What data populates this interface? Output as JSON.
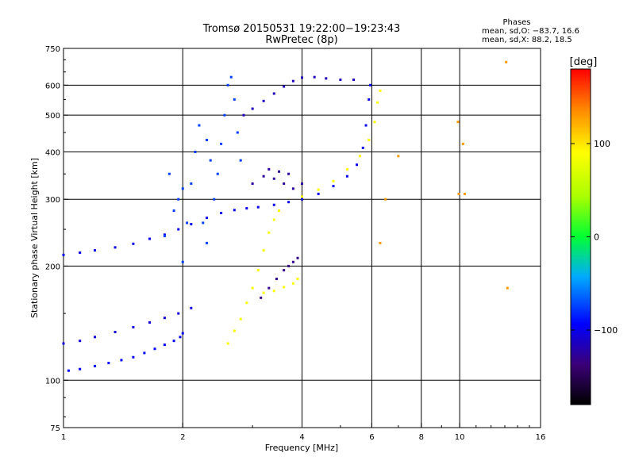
{
  "chart_data": {
    "type": "scatter",
    "title": "Tromsø 20150531 19:22:00−19:23:43",
    "subtitle": "RwPretec (8p)",
    "xlabel": "Frequency [MHz]",
    "ylabel": "Stationary phase Virtual Height [km]",
    "x_scale": "log",
    "y_scale": "log",
    "xlim": [
      1,
      16
    ],
    "ylim": [
      75,
      750
    ],
    "x_ticks": [
      1,
      2,
      4,
      6,
      8,
      10,
      16
    ],
    "y_ticks": [
      75,
      100,
      200,
      300,
      400,
      500,
      600,
      750
    ],
    "x_gridlines": [
      2,
      4,
      6,
      8,
      10
    ],
    "y_gridlines": [
      100,
      200,
      300,
      400,
      500,
      600
    ],
    "grid": true,
    "stats": {
      "header": "Phases",
      "line_o": "mean, sd,O: −83.7, 16.6",
      "line_x": "mean, sd,X:  88.2, 18.5"
    },
    "colorbar": {
      "label": "[deg]",
      "range": [
        -180,
        180
      ],
      "ticks": [
        100,
        0,
        -100
      ],
      "tick_labels": [
        "100",
        "0",
        "−100"
      ]
    },
    "series": [
      {
        "trace": "lower-E",
        "phase": -95,
        "points": [
          [
            1.03,
            106
          ],
          [
            1.1,
            107
          ],
          [
            1.2,
            109
          ],
          [
            1.3,
            111
          ],
          [
            1.4,
            113
          ],
          [
            1.5,
            115
          ],
          [
            1.6,
            118
          ],
          [
            1.7,
            121
          ],
          [
            1.8,
            124
          ],
          [
            1.9,
            127
          ],
          [
            1.97,
            130
          ],
          [
            2.0,
            133
          ]
        ]
      },
      {
        "trace": "lower-E-upper",
        "phase": -105,
        "points": [
          [
            1.0,
            125
          ],
          [
            1.1,
            127
          ],
          [
            1.2,
            130
          ],
          [
            1.35,
            134
          ],
          [
            1.5,
            138
          ],
          [
            1.65,
            142
          ],
          [
            1.8,
            146
          ],
          [
            1.95,
            150
          ],
          [
            2.1,
            155
          ]
        ]
      },
      {
        "trace": "F-lower",
        "phase": -100,
        "points": [
          [
            1.0,
            214
          ],
          [
            1.1,
            217
          ],
          [
            1.2,
            220
          ],
          [
            1.35,
            224
          ],
          [
            1.5,
            229
          ],
          [
            1.65,
            236
          ],
          [
            1.8,
            242
          ],
          [
            1.95,
            250
          ],
          [
            2.1,
            258
          ],
          [
            2.3,
            268
          ],
          [
            2.5,
            276
          ],
          [
            2.7,
            281
          ],
          [
            2.9,
            284
          ],
          [
            3.1,
            286
          ],
          [
            3.4,
            290
          ],
          [
            3.7,
            295
          ],
          [
            4.0,
            300
          ],
          [
            4.4,
            310
          ],
          [
            4.8,
            325
          ],
          [
            5.2,
            345
          ],
          [
            5.5,
            370
          ],
          [
            5.7,
            410
          ],
          [
            5.8,
            470
          ],
          [
            5.9,
            550
          ],
          [
            5.95,
            600
          ]
        ]
      },
      {
        "trace": "X-upper",
        "phase": 90,
        "points": [
          [
            4.0,
            305
          ],
          [
            4.4,
            318
          ],
          [
            4.8,
            335
          ],
          [
            5.2,
            360
          ],
          [
            5.6,
            390
          ],
          [
            5.9,
            430
          ],
          [
            6.1,
            480
          ],
          [
            6.2,
            540
          ],
          [
            6.3,
            580
          ]
        ]
      },
      {
        "trace": "F-top",
        "phase": -115,
        "points": [
          [
            2.85,
            500
          ],
          [
            3.0,
            520
          ],
          [
            3.2,
            545
          ],
          [
            3.4,
            570
          ],
          [
            3.6,
            595
          ],
          [
            3.8,
            615
          ],
          [
            4.0,
            628
          ],
          [
            4.3,
            630
          ],
          [
            4.6,
            625
          ],
          [
            5.0,
            620
          ],
          [
            5.4,
            620
          ]
        ]
      },
      {
        "trace": "spread-F-low",
        "phase": -75,
        "points": [
          [
            2.0,
            205
          ],
          [
            2.05,
            260
          ],
          [
            2.1,
            330
          ],
          [
            2.15,
            400
          ],
          [
            2.2,
            470
          ],
          [
            2.3,
            430
          ],
          [
            2.35,
            380
          ],
          [
            2.4,
            300
          ],
          [
            2.45,
            350
          ],
          [
            2.5,
            420
          ],
          [
            2.55,
            500
          ],
          [
            2.6,
            600
          ],
          [
            2.65,
            630
          ],
          [
            2.7,
            550
          ],
          [
            2.75,
            450
          ],
          [
            2.8,
            380
          ],
          [
            1.8,
            240
          ],
          [
            1.9,
            280
          ],
          [
            2.0,
            320
          ],
          [
            1.85,
            350
          ],
          [
            1.95,
            300
          ],
          [
            2.25,
            260
          ],
          [
            2.3,
            230
          ]
        ]
      },
      {
        "trace": "O-inner",
        "phase": -125,
        "points": [
          [
            3.0,
            330
          ],
          [
            3.2,
            345
          ],
          [
            3.4,
            340
          ],
          [
            3.6,
            330
          ],
          [
            3.8,
            320
          ],
          [
            4.0,
            330
          ],
          [
            3.3,
            360
          ],
          [
            3.5,
            355
          ],
          [
            3.7,
            350
          ]
        ]
      },
      {
        "trace": "X-lower",
        "phase": 85,
        "points": [
          [
            2.6,
            125
          ],
          [
            2.7,
            135
          ],
          [
            2.8,
            145
          ],
          [
            2.9,
            160
          ],
          [
            3.0,
            175
          ],
          [
            3.1,
            195
          ],
          [
            3.2,
            220
          ],
          [
            3.3,
            245
          ],
          [
            3.4,
            265
          ],
          [
            3.5,
            280
          ]
        ]
      },
      {
        "trace": "O-mid",
        "phase": -130,
        "points": [
          [
            3.15,
            165
          ],
          [
            3.3,
            175
          ],
          [
            3.45,
            185
          ],
          [
            3.6,
            195
          ],
          [
            3.7,
            200
          ],
          [
            3.8,
            205
          ],
          [
            3.9,
            210
          ]
        ]
      },
      {
        "trace": "X-mid",
        "phase": 90,
        "points": [
          [
            3.2,
            170
          ],
          [
            3.4,
            172
          ],
          [
            3.6,
            176
          ],
          [
            3.8,
            180
          ],
          [
            3.9,
            185
          ]
        ]
      },
      {
        "trace": "isolated",
        "phase": 130,
        "points": [
          [
            9.9,
            480
          ],
          [
            9.95,
            310
          ],
          [
            10.2,
            420
          ],
          [
            10.3,
            310
          ],
          [
            13.1,
            690
          ],
          [
            13.2,
            175
          ],
          [
            6.5,
            300
          ],
          [
            7.0,
            390
          ],
          [
            6.3,
            230
          ]
        ]
      }
    ]
  }
}
